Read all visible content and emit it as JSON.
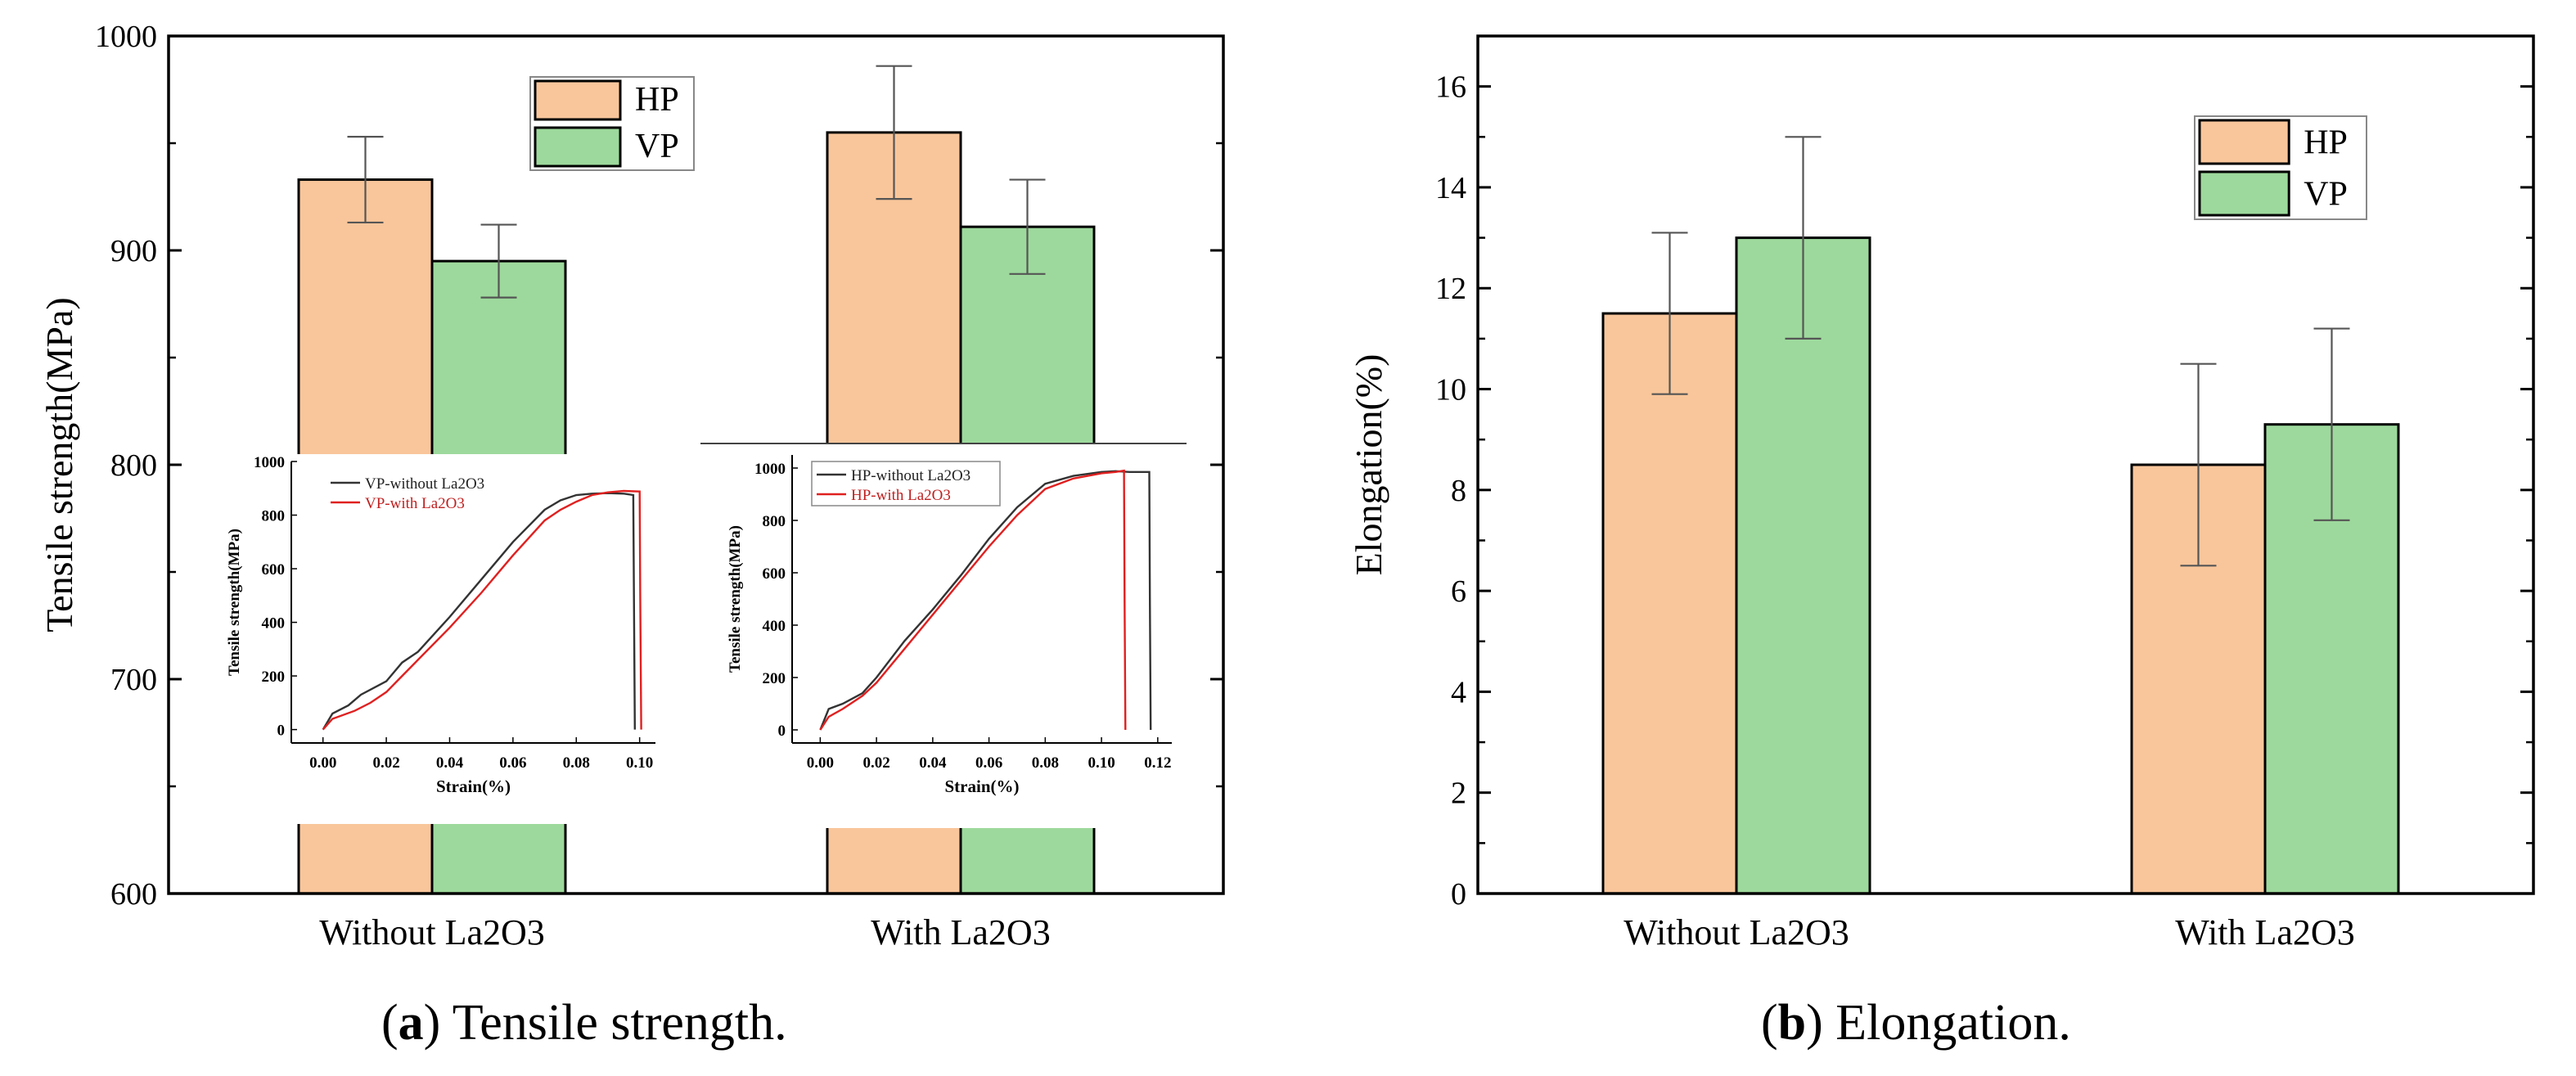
{
  "colors": {
    "hp": "#f9c69b",
    "vp": "#9dd99c",
    "axis": "#000000",
    "inset_without": "#333333",
    "inset_with": "#e02020"
  },
  "captions": {
    "a": {
      "letter": "a",
      "text": "Tensile strength."
    },
    "b": {
      "letter": "b",
      "text": "Elongation."
    }
  },
  "chart_data": [
    {
      "id": "tensile",
      "type": "bar",
      "title": "",
      "xlabel": "",
      "ylabel": "Tensile strength(MPa)",
      "categories": [
        "Without La2O3",
        "With La2O3"
      ],
      "series": [
        {
          "name": "HP",
          "values": [
            933,
            955
          ],
          "errors": [
            20,
            31
          ]
        },
        {
          "name": "VP",
          "values": [
            895,
            911
          ],
          "errors": [
            17,
            22
          ]
        }
      ],
      "ylim": [
        600,
        1000
      ],
      "yticks": [
        600,
        700,
        800,
        900,
        1000
      ],
      "legend": {
        "position": "top-center",
        "entries": [
          "HP",
          "VP"
        ]
      },
      "grid": false
    },
    {
      "id": "elongation",
      "type": "bar",
      "title": "",
      "xlabel": "",
      "ylabel": "Elongation(%)",
      "categories": [
        "Without La2O3",
        "With La2O3"
      ],
      "series": [
        {
          "name": "HP",
          "values": [
            11.5,
            8.5
          ],
          "errors": [
            1.6,
            2.0
          ]
        },
        {
          "name": "VP",
          "values": [
            13.0,
            9.3
          ],
          "errors": [
            2.0,
            1.9
          ]
        }
      ],
      "ylim": [
        0,
        17
      ],
      "yticks": [
        0,
        2,
        4,
        6,
        8,
        10,
        12,
        14,
        16
      ],
      "legend": {
        "position": "top-right",
        "entries": [
          "HP",
          "VP"
        ]
      },
      "grid": false
    },
    {
      "id": "inset_vp",
      "type": "line",
      "xlabel": "Strain(%)",
      "ylabel": "Tensile strength(MPa)",
      "xlim": [
        -0.01,
        0.105
      ],
      "ylim": [
        -50,
        1000
      ],
      "xticks": [
        "0.00",
        "0.02",
        "0.04",
        "0.06",
        "0.08",
        "0.10"
      ],
      "yticks": [
        "0",
        "200",
        "400",
        "600",
        "800",
        "1000"
      ],
      "series": [
        {
          "name": "VP-without La2O3",
          "x": [
            0.0,
            0.003,
            0.008,
            0.012,
            0.02,
            0.025,
            0.03,
            0.04,
            0.05,
            0.06,
            0.07,
            0.075,
            0.08,
            0.085,
            0.09,
            0.095,
            0.098,
            0.0982,
            0.0985
          ],
          "y": [
            0,
            60,
            90,
            130,
            180,
            250,
            290,
            420,
            560,
            700,
            820,
            855,
            875,
            880,
            882,
            880,
            875,
            500,
            0
          ]
        },
        {
          "name": "VP-with La2O3",
          "x": [
            0.0,
            0.003,
            0.01,
            0.015,
            0.02,
            0.025,
            0.03,
            0.04,
            0.05,
            0.06,
            0.07,
            0.075,
            0.08,
            0.085,
            0.09,
            0.095,
            0.1,
            0.1002,
            0.1005
          ],
          "y": [
            0,
            40,
            70,
            100,
            140,
            200,
            260,
            380,
            510,
            650,
            780,
            820,
            850,
            875,
            885,
            890,
            888,
            500,
            0
          ]
        }
      ]
    },
    {
      "id": "inset_hp",
      "type": "line",
      "xlabel": "Strain(%)",
      "ylabel": "Tensile strength(MPa)",
      "xlim": [
        -0.01,
        0.125
      ],
      "ylim": [
        -50,
        1050
      ],
      "xticks": [
        "0.00",
        "0.02",
        "0.04",
        "0.06",
        "0.08",
        "0.10",
        "0.12"
      ],
      "yticks": [
        "0",
        "200",
        "400",
        "600",
        "800",
        "1000"
      ],
      "series": [
        {
          "name": "HP-without La2O3",
          "x": [
            0.0,
            0.003,
            0.008,
            0.015,
            0.02,
            0.03,
            0.04,
            0.05,
            0.06,
            0.07,
            0.08,
            0.09,
            0.1,
            0.105,
            0.11,
            0.115,
            0.117,
            0.1172,
            0.1175
          ],
          "y": [
            0,
            80,
            100,
            140,
            200,
            340,
            460,
            590,
            730,
            850,
            940,
            970,
            985,
            988,
            985,
            985,
            985,
            500,
            0
          ]
        },
        {
          "name": "HP-with La2O3",
          "x": [
            0.0,
            0.003,
            0.008,
            0.015,
            0.02,
            0.03,
            0.04,
            0.05,
            0.06,
            0.07,
            0.08,
            0.09,
            0.1,
            0.105,
            0.108,
            0.1082,
            0.1085
          ],
          "y": [
            0,
            50,
            80,
            130,
            180,
            310,
            440,
            570,
            700,
            820,
            920,
            960,
            980,
            985,
            990,
            500,
            0
          ]
        }
      ]
    }
  ]
}
